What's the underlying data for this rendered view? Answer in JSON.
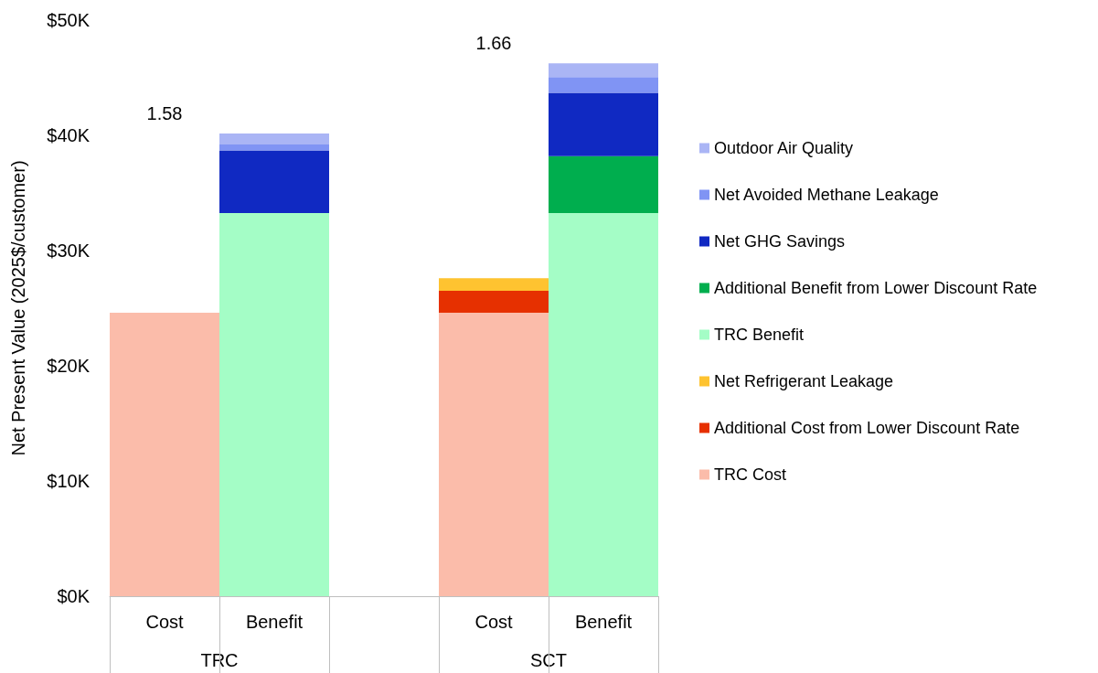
{
  "chart_data": {
    "type": "bar",
    "stacked": true,
    "ylabel": "Net Present Value (2025$/customer)",
    "categories": [
      "Cost",
      "Benefit",
      null,
      "Cost",
      "Benefit"
    ],
    "series": [
      {
        "name": "TRC Cost",
        "color": "#fbbcaa",
        "values": [
          24.6,
          null,
          null,
          24.6,
          null
        ]
      },
      {
        "name": "Additional Cost from Lower Discount Rate",
        "color": "#e63000",
        "values": [
          null,
          null,
          null,
          1.9,
          null
        ]
      },
      {
        "name": "Net Refrigerant Leakage",
        "color": "#fec330",
        "values": [
          null,
          null,
          null,
          1.1,
          null
        ]
      },
      {
        "name": "TRC Benefit",
        "color": "#a4fdc6",
        "values": [
          null,
          33.25,
          null,
          null,
          33.25
        ]
      },
      {
        "name": "Additional Benefit from Lower Discount Rate",
        "color": "#00ae4e",
        "values": [
          null,
          null,
          null,
          null,
          4.95
        ]
      },
      {
        "name": "Net GHG Savings",
        "color": "#1029c2",
        "values": [
          null,
          5.45,
          null,
          null,
          5.5
        ]
      },
      {
        "name": "Net Avoided Methane Leakage",
        "color": "#8094f4",
        "values": [
          null,
          0.5,
          null,
          null,
          1.35
        ]
      },
      {
        "name": "Outdoor Air Quality",
        "color": "#aab5f5",
        "values": [
          null,
          0.95,
          null,
          null,
          1.2
        ]
      }
    ],
    "ylim": [
      0,
      50
    ],
    "yticks": [
      {
        "value": 0,
        "label": "$0K"
      },
      {
        "value": 10,
        "label": "$10K"
      },
      {
        "value": 20,
        "label": "$20K"
      },
      {
        "value": 30,
        "label": "$30K"
      },
      {
        "value": 40,
        "label": "$40K"
      },
      {
        "value": 50,
        "label": "$50K"
      }
    ],
    "annotations": [
      "1.58",
      "1.66",
      "TRC",
      "SCT"
    ],
    "grid": false,
    "legend": "right"
  }
}
